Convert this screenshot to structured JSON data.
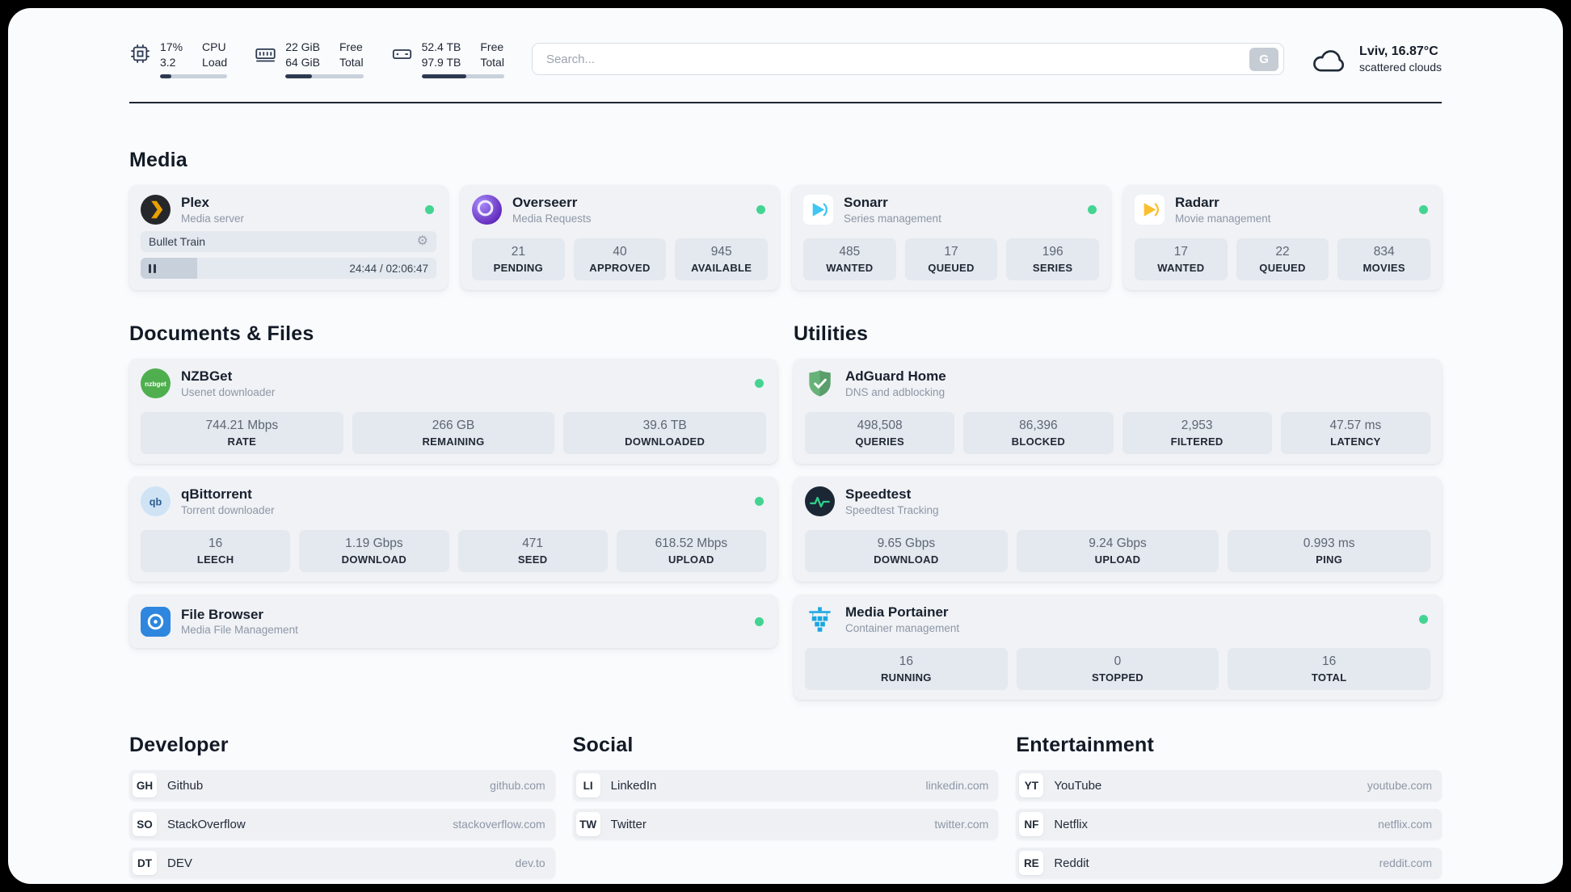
{
  "topbar": {
    "cpu": {
      "value_top": "17%",
      "value_bottom": "3.2",
      "label_top": "CPU",
      "label_bottom": "Load",
      "bar_percent": 17
    },
    "ram": {
      "value_top": "22 GiB",
      "value_bottom": "64 GiB",
      "label_top": "Free",
      "label_bottom": "Total",
      "bar_percent": 34
    },
    "disk": {
      "value_top": "52.4 TB",
      "value_bottom": "97.9 TB",
      "label_top": "Free",
      "label_bottom": "Total",
      "bar_percent": 54
    },
    "search": {
      "placeholder": "Search...",
      "engine_button": "G"
    },
    "weather": {
      "location": "Lviv, 16.87°C",
      "condition": "scattered clouds"
    }
  },
  "media": {
    "title": "Media",
    "plex": {
      "name": "Plex",
      "subtitle": "Media server",
      "now_playing": "Bullet Train",
      "progress_time": "24:44 / 02:06:47",
      "progress_percent": 19
    },
    "overseerr": {
      "name": "Overseerr",
      "subtitle": "Media Requests",
      "stats": [
        {
          "value": "21",
          "label": "PENDING"
        },
        {
          "value": "40",
          "label": "APPROVED"
        },
        {
          "value": "945",
          "label": "AVAILABLE"
        }
      ]
    },
    "sonarr": {
      "name": "Sonarr",
      "subtitle": "Series management",
      "stats": [
        {
          "value": "485",
          "label": "WANTED"
        },
        {
          "value": "17",
          "label": "QUEUED"
        },
        {
          "value": "196",
          "label": "SERIES"
        }
      ]
    },
    "radarr": {
      "name": "Radarr",
      "subtitle": "Movie management",
      "stats": [
        {
          "value": "17",
          "label": "WANTED"
        },
        {
          "value": "22",
          "label": "QUEUED"
        },
        {
          "value": "834",
          "label": "MOVIES"
        }
      ]
    }
  },
  "documents": {
    "title": "Documents & Files",
    "nzbget": {
      "name": "NZBGet",
      "subtitle": "Usenet downloader",
      "stats": [
        {
          "value": "744.21 Mbps",
          "label": "RATE"
        },
        {
          "value": "266 GB",
          "label": "REMAINING"
        },
        {
          "value": "39.6 TB",
          "label": "DOWNLOADED"
        }
      ]
    },
    "qbittorrent": {
      "name": "qBittorrent",
      "subtitle": "Torrent downloader",
      "stats": [
        {
          "value": "16",
          "label": "LEECH"
        },
        {
          "value": "1.19 Gbps",
          "label": "DOWNLOAD"
        },
        {
          "value": "471",
          "label": "SEED"
        },
        {
          "value": "618.52 Mbps",
          "label": "UPLOAD"
        }
      ]
    },
    "filebrowser": {
      "name": "File Browser",
      "subtitle": "Media File Management"
    }
  },
  "utilities": {
    "title": "Utilities",
    "adguard": {
      "name": "AdGuard Home",
      "subtitle": "DNS and adblocking",
      "stats": [
        {
          "value": "498,508",
          "label": "QUERIES"
        },
        {
          "value": "86,396",
          "label": "BLOCKED"
        },
        {
          "value": "2,953",
          "label": "FILTERED"
        },
        {
          "value": "47.57 ms",
          "label": "LATENCY"
        }
      ]
    },
    "speedtest": {
      "name": "Speedtest",
      "subtitle": "Speedtest Tracking",
      "stats": [
        {
          "value": "9.65 Gbps",
          "label": "DOWNLOAD"
        },
        {
          "value": "9.24 Gbps",
          "label": "UPLOAD"
        },
        {
          "value": "0.993 ms",
          "label": "PING"
        }
      ]
    },
    "portainer": {
      "name": "Media Portainer",
      "subtitle": "Container management",
      "stats": [
        {
          "value": "16",
          "label": "RUNNING"
        },
        {
          "value": "0",
          "label": "STOPPED"
        },
        {
          "value": "16",
          "label": "TOTAL"
        }
      ]
    }
  },
  "bookmarks": {
    "developer": {
      "title": "Developer",
      "items": [
        {
          "badge": "GH",
          "name": "Github",
          "url": "github.com"
        },
        {
          "badge": "SO",
          "name": "StackOverflow",
          "url": "stackoverflow.com"
        },
        {
          "badge": "DT",
          "name": "DEV",
          "url": "dev.to"
        }
      ]
    },
    "social": {
      "title": "Social",
      "items": [
        {
          "badge": "LI",
          "name": "LinkedIn",
          "url": "linkedin.com"
        },
        {
          "badge": "TW",
          "name": "Twitter",
          "url": "twitter.com"
        }
      ]
    },
    "entertainment": {
      "title": "Entertainment",
      "items": [
        {
          "badge": "YT",
          "name": "YouTube",
          "url": "youtube.com"
        },
        {
          "badge": "NF",
          "name": "Netflix",
          "url": "netflix.com"
        },
        {
          "badge": "RE",
          "name": "Reddit",
          "url": "reddit.com"
        }
      ]
    }
  },
  "icons": {
    "gear_glyph": "⚙",
    "nzbget_icon_text": "nzbget",
    "qb_icon_text": "qb"
  },
  "colors": {
    "status_online": "#44d492",
    "plex_yellow": "#e8a100",
    "sonarr_blue": "#3ec6f4",
    "radarr_orange": "#fcbe2d",
    "adguard_green": "#67b279",
    "portainer_blue": "#1ba7e0",
    "speedtest_pulse": "#2fd08b",
    "overseerr_purple": "#5b21b6",
    "nzbget_green": "#4faf4e",
    "filebrowser_blue": "#2e86de"
  }
}
